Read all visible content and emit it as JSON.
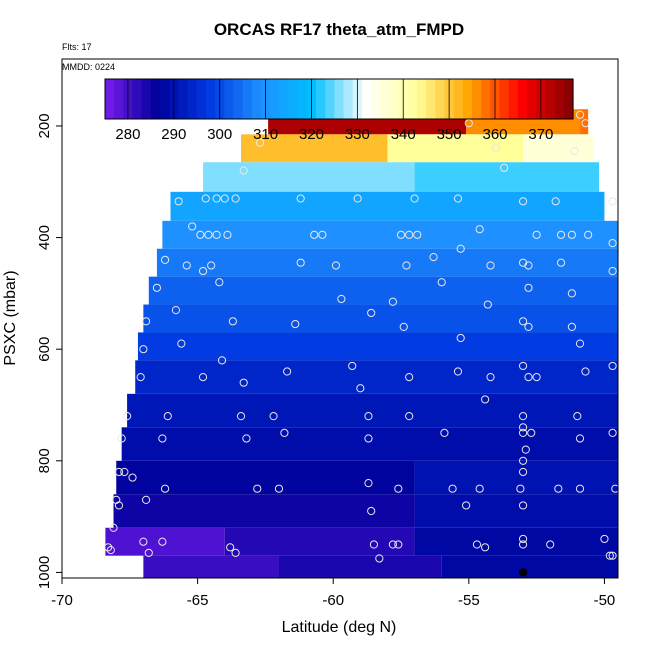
{
  "chart_data": {
    "type": "heatmap",
    "title": "ORCAS RF17 theta_atm_FMPD",
    "subtitle": "Flts: 17",
    "annotation": "MMDD: 0224",
    "xlabel": "Latitude (deg N)",
    "ylabel": "PSXC (mbar)",
    "xlim": [
      -70,
      -49.5
    ],
    "ylim": [
      1010,
      80
    ],
    "x_ticks": [
      -70,
      -65,
      -60,
      -55,
      -50
    ],
    "x_tick_labels": [
      "-70",
      "-65",
      "-60",
      "-55",
      "-50"
    ],
    "y_ticks": [
      200,
      400,
      600,
      800,
      1000
    ],
    "y_tick_labels": [
      "200",
      "400",
      "600",
      "800",
      "1000"
    ],
    "colorbar": {
      "ticks": [
        280,
        290,
        300,
        310,
        320,
        330,
        340,
        350,
        360,
        370
      ],
      "tick_labels": [
        "280",
        "290",
        "300",
        "310",
        "320",
        "330",
        "340",
        "350",
        "360",
        "370"
      ],
      "range": [
        275,
        377
      ],
      "stops": [
        "#7a1cf0",
        "#00009a",
        "#0038e0",
        "#1e90ff",
        "#00bfff",
        "#ffffff",
        "#ffff99",
        "#ffa500",
        "#ff0000",
        "#800000"
      ]
    },
    "bands": [
      {
        "p_top": 170,
        "p_bot": 215,
        "segments": [
          {
            "x0": -62.4,
            "x1": -55.1,
            "v": 373
          },
          {
            "x0": -55.1,
            "x1": -50.9,
            "v": 356
          },
          {
            "x0": -50.9,
            "x1": -50.6,
            "v": 358
          }
        ]
      },
      {
        "p_top": 215,
        "p_bot": 265,
        "segments": [
          {
            "x0": -63.4,
            "x1": -58.0,
            "v": 351
          },
          {
            "x0": -58.0,
            "x1": -53.0,
            "v": 343
          },
          {
            "x0": -53.0,
            "x1": -50.4,
            "v": 336
          }
        ]
      },
      {
        "p_top": 265,
        "p_bot": 318,
        "segments": [
          {
            "x0": -64.8,
            "x1": -57.0,
            "v": 326
          },
          {
            "x0": -57.0,
            "x1": -50.2,
            "v": 323
          }
        ]
      },
      {
        "p_top": 318,
        "p_bot": 370,
        "segments": [
          {
            "x0": -66.0,
            "x1": -50.0,
            "v": 314
          }
        ]
      },
      {
        "p_top": 370,
        "p_bot": 420,
        "segments": [
          {
            "x0": -66.3,
            "x1": -49.5,
            "v": 309
          }
        ]
      },
      {
        "p_top": 420,
        "p_bot": 470,
        "segments": [
          {
            "x0": -66.5,
            "x1": -49.5,
            "v": 306
          }
        ]
      },
      {
        "p_top": 470,
        "p_bot": 520,
        "segments": [
          {
            "x0": -66.8,
            "x1": -49.5,
            "v": 303
          }
        ]
      },
      {
        "p_top": 520,
        "p_bot": 570,
        "segments": [
          {
            "x0": -67.0,
            "x1": -49.5,
            "v": 301
          }
        ]
      },
      {
        "p_top": 570,
        "p_bot": 620,
        "segments": [
          {
            "x0": -67.2,
            "x1": -49.5,
            "v": 298
          }
        ]
      },
      {
        "p_top": 620,
        "p_bot": 680,
        "segments": [
          {
            "x0": -67.3,
            "x1": -49.5,
            "v": 294
          }
        ]
      },
      {
        "p_top": 680,
        "p_bot": 740,
        "segments": [
          {
            "x0": -67.6,
            "x1": -49.5,
            "v": 291
          }
        ]
      },
      {
        "p_top": 740,
        "p_bot": 800,
        "segments": [
          {
            "x0": -67.8,
            "x1": -49.5,
            "v": 289
          }
        ]
      },
      {
        "p_top": 800,
        "p_bot": 860,
        "segments": [
          {
            "x0": -68.0,
            "x1": -57.0,
            "v": 287
          },
          {
            "x0": -57.0,
            "x1": -49.5,
            "v": 290
          }
        ]
      },
      {
        "p_top": 860,
        "p_bot": 920,
        "segments": [
          {
            "x0": -68.1,
            "x1": -57.0,
            "v": 285
          },
          {
            "x0": -57.0,
            "x1": -49.5,
            "v": 289
          }
        ]
      },
      {
        "p_top": 920,
        "p_bot": 970,
        "segments": [
          {
            "x0": -68.4,
            "x1": -64.0,
            "v": 279
          },
          {
            "x0": -64.0,
            "x1": -57.0,
            "v": 283
          },
          {
            "x0": -57.0,
            "x1": -49.5,
            "v": 288
          }
        ]
      },
      {
        "p_top": 970,
        "p_bot": 1010,
        "segments": [
          {
            "x0": -67.0,
            "x1": -62.0,
            "v": 281
          },
          {
            "x0": -62.0,
            "x1": -56.0,
            "v": 284
          },
          {
            "x0": -56.0,
            "x1": -49.5,
            "v": 288
          }
        ]
      }
    ],
    "points": [
      [
        -62.2,
        180
      ],
      [
        -61.6,
        180
      ],
      [
        -61.0,
        180
      ],
      [
        -60.4,
        180
      ],
      [
        -59.8,
        180
      ],
      [
        -59.2,
        180
      ],
      [
        -58.6,
        180
      ],
      [
        -58.0,
        180
      ],
      [
        -57.4,
        180
      ],
      [
        -56.8,
        180
      ],
      [
        -56.2,
        180
      ],
      [
        -55.6,
        180
      ],
      [
        -51.4,
        180
      ],
      [
        -50.9,
        180
      ],
      [
        -50.7,
        195
      ],
      [
        -55.0,
        195
      ],
      [
        -62.7,
        230
      ],
      [
        -54.0,
        240
      ],
      [
        -51.1,
        245
      ],
      [
        -53.7,
        275
      ],
      [
        -63.3,
        280
      ],
      [
        -65.7,
        335
      ],
      [
        -64.7,
        330
      ],
      [
        -64.3,
        330
      ],
      [
        -64.0,
        330
      ],
      [
        -63.6,
        330
      ],
      [
        -61.2,
        330
      ],
      [
        -59.1,
        330
      ],
      [
        -57.0,
        330
      ],
      [
        -55.4,
        330
      ],
      [
        -53.0,
        335
      ],
      [
        -51.8,
        335
      ],
      [
        -49.7,
        335
      ],
      [
        -65.2,
        380
      ],
      [
        -64.9,
        395
      ],
      [
        -64.6,
        395
      ],
      [
        -64.3,
        395
      ],
      [
        -63.9,
        395
      ],
      [
        -60.7,
        395
      ],
      [
        -60.4,
        395
      ],
      [
        -57.5,
        395
      ],
      [
        -57.2,
        395
      ],
      [
        -56.9,
        395
      ],
      [
        -54.6,
        385
      ],
      [
        -52.5,
        395
      ],
      [
        -51.6,
        395
      ],
      [
        -51.2,
        395
      ],
      [
        -50.6,
        395
      ],
      [
        -49.7,
        410
      ],
      [
        -65.4,
        450
      ],
      [
        -66.2,
        440
      ],
      [
        -64.5,
        450
      ],
      [
        -61.2,
        445
      ],
      [
        -59.9,
        450
      ],
      [
        -57.3,
        450
      ],
      [
        -56.3,
        435
      ],
      [
        -55.3,
        420
      ],
      [
        -54.2,
        450
      ],
      [
        -53.0,
        445
      ],
      [
        -52.8,
        450
      ],
      [
        -51.6,
        445
      ],
      [
        -49.7,
        460
      ],
      [
        -66.5,
        490
      ],
      [
        -64.8,
        460
      ],
      [
        -64.2,
        480
      ],
      [
        -59.7,
        510
      ],
      [
        -57.8,
        515
      ],
      [
        -56.0,
        480
      ],
      [
        -54.3,
        520
      ],
      [
        -52.8,
        490
      ],
      [
        -51.2,
        500
      ],
      [
        -66.9,
        550
      ],
      [
        -65.8,
        530
      ],
      [
        -63.7,
        550
      ],
      [
        -61.4,
        555
      ],
      [
        -58.6,
        535
      ],
      [
        -57.4,
        560
      ],
      [
        -55.3,
        580
      ],
      [
        -53.0,
        550
      ],
      [
        -52.8,
        560
      ],
      [
        -51.2,
        560
      ],
      [
        -50.9,
        590
      ],
      [
        -67.0,
        600
      ],
      [
        -67.1,
        650
      ],
      [
        -65.6,
        590
      ],
      [
        -64.8,
        650
      ],
      [
        -64.1,
        620
      ],
      [
        -63.3,
        660
      ],
      [
        -61.7,
        640
      ],
      [
        -59.3,
        630
      ],
      [
        -57.2,
        650
      ],
      [
        -55.4,
        640
      ],
      [
        -54.2,
        650
      ],
      [
        -53.0,
        630
      ],
      [
        -52.8,
        650
      ],
      [
        -52.5,
        650
      ],
      [
        -50.7,
        640
      ],
      [
        -49.7,
        630
      ],
      [
        -67.6,
        720
      ],
      [
        -66.1,
        720
      ],
      [
        -63.4,
        720
      ],
      [
        -62.2,
        720
      ],
      [
        -59.0,
        670
      ],
      [
        -58.7,
        720
      ],
      [
        -57.2,
        720
      ],
      [
        -54.4,
        690
      ],
      [
        -53.0,
        720
      ],
      [
        -53.0,
        740
      ],
      [
        -51.0,
        720
      ],
      [
        -67.8,
        760
      ],
      [
        -66.3,
        760
      ],
      [
        -63.2,
        760
      ],
      [
        -61.8,
        750
      ],
      [
        -58.7,
        760
      ],
      [
        -55.9,
        750
      ],
      [
        -53.0,
        750
      ],
      [
        -52.9,
        780
      ],
      [
        -52.7,
        750
      ],
      [
        -50.9,
        760
      ],
      [
        -49.7,
        750
      ],
      [
        -67.9,
        820
      ],
      [
        -67.7,
        820
      ],
      [
        -67.4,
        830
      ],
      [
        -66.2,
        850
      ],
      [
        -62.8,
        850
      ],
      [
        -62.0,
        850
      ],
      [
        -58.7,
        840
      ],
      [
        -57.6,
        850
      ],
      [
        -55.6,
        850
      ],
      [
        -53.1,
        850
      ],
      [
        -53.0,
        800
      ],
      [
        -53.0,
        820
      ],
      [
        -51.7,
        850
      ],
      [
        -50.9,
        850
      ],
      [
        -49.6,
        850
      ],
      [
        -68.0,
        870
      ],
      [
        -67.9,
        880
      ],
      [
        -68.1,
        920
      ],
      [
        -66.9,
        870
      ],
      [
        -58.6,
        890
      ],
      [
        -55.1,
        880
      ],
      [
        -53.0,
        880
      ],
      [
        -54.6,
        850
      ],
      [
        -68.3,
        955
      ],
      [
        -68.2,
        960
      ],
      [
        -67.0,
        945
      ],
      [
        -66.8,
        965
      ],
      [
        -66.3,
        945
      ],
      [
        -63.8,
        955
      ],
      [
        -63.6,
        965
      ],
      [
        -58.5,
        950
      ],
      [
        -58.3,
        975
      ],
      [
        -57.8,
        950
      ],
      [
        -57.6,
        950
      ],
      [
        -54.7,
        950
      ],
      [
        -54.4,
        955
      ],
      [
        -53.0,
        950
      ],
      [
        -53.0,
        940
      ],
      [
        -52.0,
        950
      ],
      [
        -50.0,
        940
      ],
      [
        -49.8,
        970
      ],
      [
        -49.7,
        970
      ]
    ],
    "track_point": [
      -53.0,
      1000
    ]
  }
}
